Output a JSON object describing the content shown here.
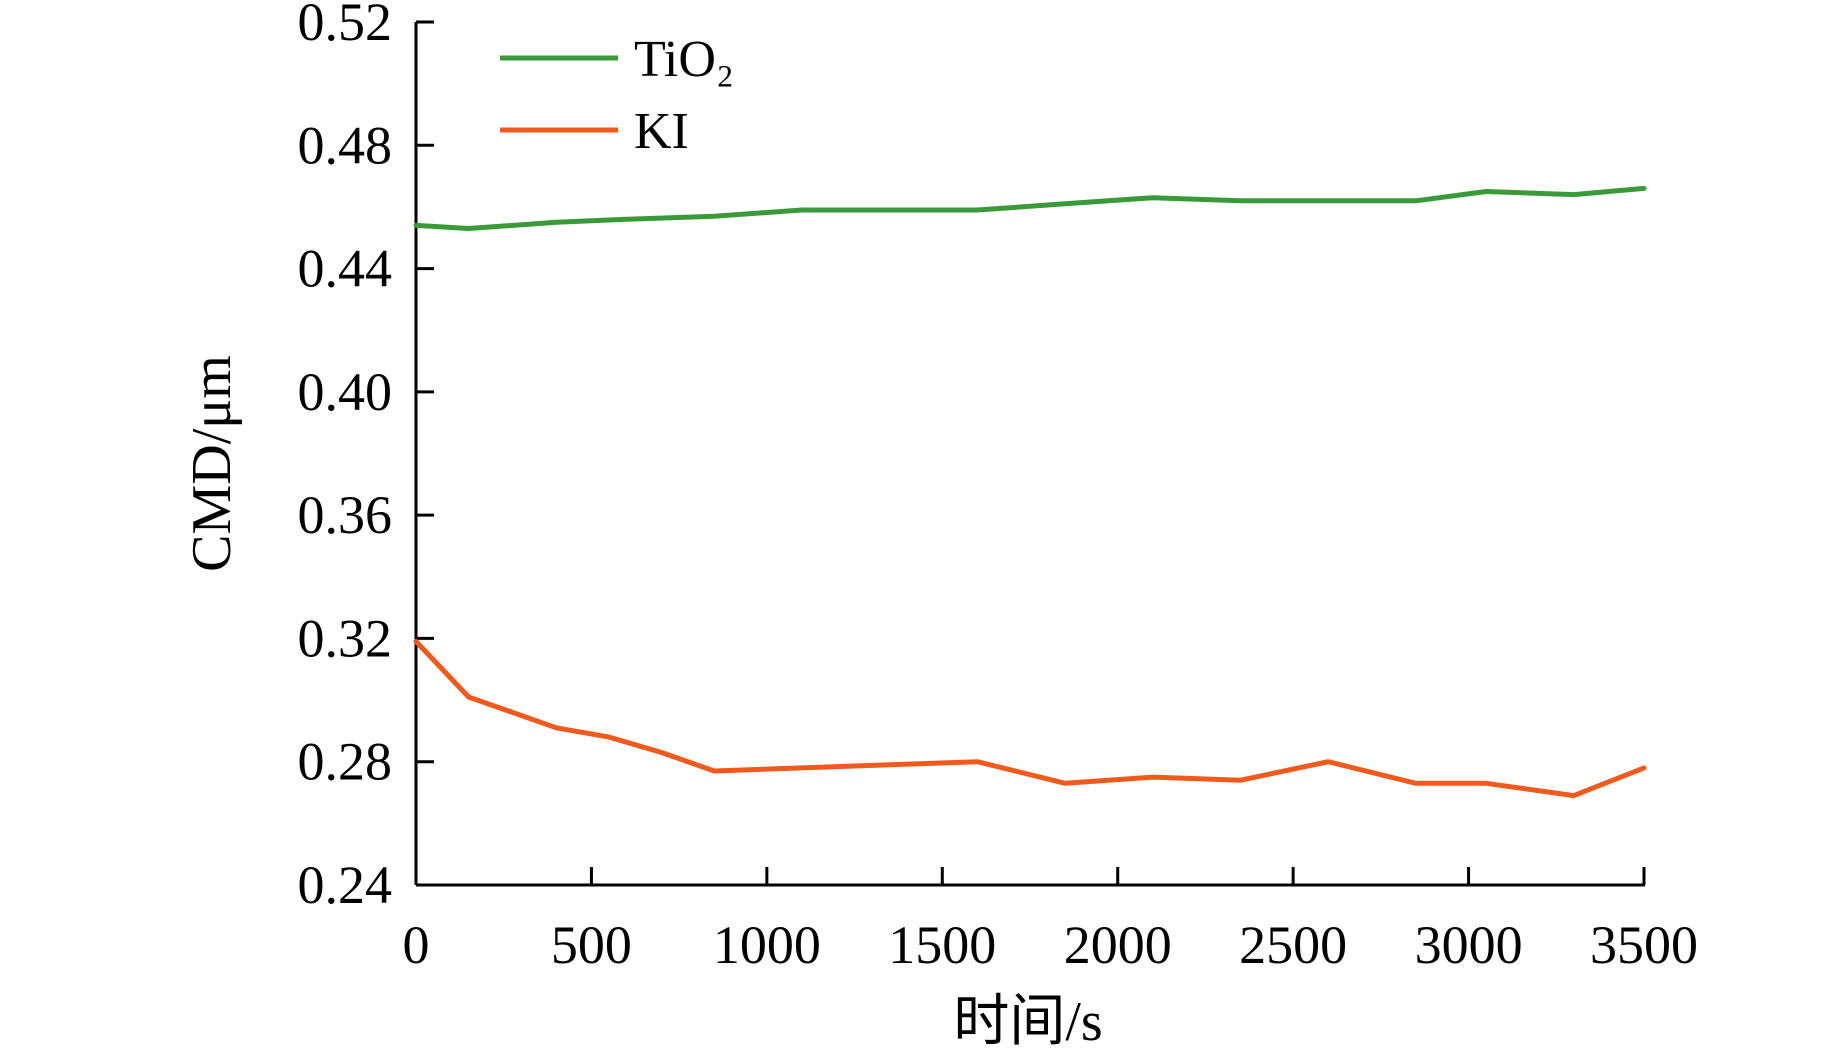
{
  "chart_data": {
    "type": "line",
    "title": "",
    "xlabel": "时间/s",
    "ylabel": "CMD/μm",
    "xlim": [
      0,
      3500
    ],
    "ylim": [
      0.24,
      0.52
    ],
    "xticks": [
      0,
      500,
      1000,
      1500,
      2000,
      2500,
      3000,
      3500
    ],
    "xtick_labels": [
      "0",
      "500",
      "1000",
      "1500",
      "2000",
      "2500",
      "3000",
      "3500"
    ],
    "yticks": [
      0.24,
      0.28,
      0.32,
      0.36,
      0.4,
      0.44,
      0.48,
      0.52
    ],
    "ytick_labels": [
      "0.24",
      "0.28",
      "0.32",
      "0.36",
      "0.40",
      "0.44",
      "0.48",
      "0.52"
    ],
    "grid": false,
    "legend_position": "top-left",
    "series": [
      {
        "name": "TiO₂",
        "color": "#3a9a3a",
        "x": [
          0,
          150,
          400,
          600,
          850,
          1100,
          1350,
          1600,
          1850,
          2100,
          2350,
          2600,
          2850,
          3050,
          3300,
          3500
        ],
        "y": [
          0.454,
          0.453,
          0.455,
          0.456,
          0.457,
          0.459,
          0.459,
          0.459,
          0.461,
          0.463,
          0.462,
          0.462,
          0.462,
          0.465,
          0.464,
          0.466
        ]
      },
      {
        "name": "KI",
        "color": "#f05a1e",
        "x": [
          0,
          150,
          400,
          550,
          700,
          850,
          1100,
          1350,
          1600,
          1850,
          2100,
          2350,
          2600,
          2850,
          3050,
          3300,
          3500
        ],
        "y": [
          0.319,
          0.301,
          0.291,
          0.288,
          0.283,
          0.277,
          0.278,
          0.279,
          0.28,
          0.273,
          0.275,
          0.274,
          0.28,
          0.273,
          0.273,
          0.269,
          0.278
        ]
      }
    ]
  }
}
